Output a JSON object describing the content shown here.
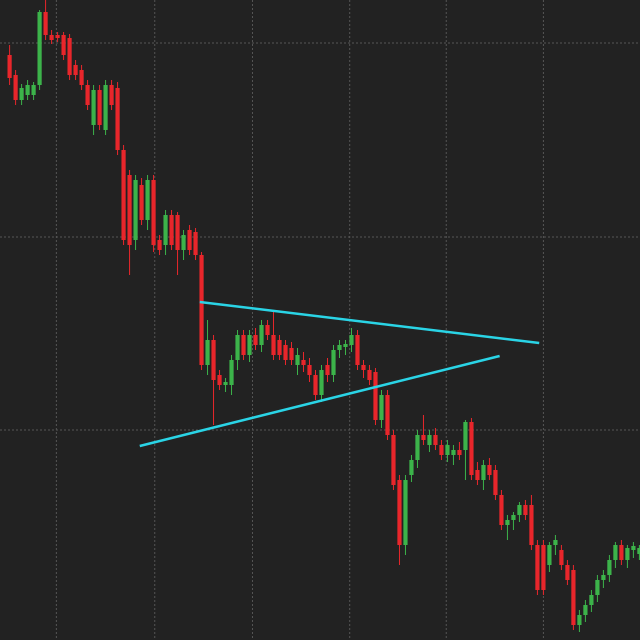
{
  "chart_data": {
    "type": "candlestick",
    "up_color": "#3cb34a",
    "down_color": "#e8262b",
    "trendline_color": "#2ad4e6",
    "grid": true,
    "xlim": [
      -1.6,
      105.1
    ],
    "ylim": [
      0,
      640
    ],
    "xticks": [
      7.8,
      24.2,
      40.5,
      56.7,
      72.8,
      89
    ],
    "yticks": [
      210,
      403,
      597
    ],
    "open": [
      585,
      565,
      540,
      545,
      545,
      555,
      628,
      605,
      605,
      605,
      602,
      575,
      570,
      555,
      515,
      550,
      510,
      555,
      552,
      490,
      465,
      400,
      455,
      420,
      460,
      400,
      395,
      425,
      425,
      390,
      410,
      408,
      385,
      275,
      300,
      265,
      255,
      255,
      280,
      305,
      285,
      305,
      295,
      315,
      305,
      300,
      295,
      292,
      275,
      280,
      275,
      265,
      245,
      275,
      265,
      290,
      293,
      295,
      305,
      275,
      270,
      268,
      220,
      245,
      205,
      160,
      95,
      165,
      180,
      205,
      195,
      205,
      195,
      185,
      185,
      190,
      190,
      218,
      170,
      160,
      175,
      170,
      145,
      115,
      120,
      125,
      135,
      135,
      95,
      95,
      75,
      95,
      90,
      75,
      70,
      15,
      25,
      35,
      45,
      60,
      65,
      80,
      95,
      80,
      90,
      86
    ],
    "high": [
      595,
      570,
      556,
      560,
      558,
      630,
      640,
      610,
      608,
      608,
      606,
      580,
      575,
      560,
      555,
      555,
      560,
      560,
      558,
      495,
      470,
      465,
      462,
      465,
      465,
      405,
      430,
      430,
      428,
      410,
      415,
      412,
      388,
      320,
      305,
      270,
      262,
      285,
      310,
      310,
      310,
      312,
      320,
      320,
      328,
      305,
      300,
      298,
      292,
      288,
      282,
      270,
      275,
      282,
      295,
      300,
      300,
      312,
      310,
      280,
      275,
      272,
      250,
      250,
      210,
      165,
      165,
      185,
      210,
      225,
      210,
      212,
      200,
      200,
      195,
      198,
      220,
      222,
      178,
      180,
      182,
      175,
      150,
      125,
      128,
      138,
      140,
      145,
      100,
      100,
      98,
      105,
      95,
      80,
      75,
      30,
      40,
      50,
      65,
      70,
      85,
      98,
      100,
      95,
      98,
      95
    ],
    "low": [
      555,
      535,
      535,
      540,
      540,
      550,
      600,
      596,
      598,
      580,
      560,
      560,
      550,
      530,
      505,
      510,
      505,
      530,
      485,
      395,
      365,
      390,
      415,
      410,
      388,
      385,
      385,
      390,
      365,
      380,
      385,
      380,
      270,
      265,
      215,
      250,
      248,
      245,
      270,
      280,
      278,
      290,
      288,
      300,
      280,
      280,
      275,
      275,
      265,
      268,
      258,
      240,
      238,
      258,
      258,
      282,
      285,
      288,
      270,
      262,
      255,
      215,
      212,
      200,
      150,
      75,
      85,
      158,
      172,
      195,
      188,
      190,
      180,
      178,
      175,
      180,
      160,
      160,
      155,
      150,
      160,
      140,
      110,
      100,
      110,
      118,
      120,
      90,
      45,
      45,
      68,
      85,
      70,
      55,
      10,
      8,
      18,
      28,
      38,
      52,
      58,
      72,
      75,
      72,
      82,
      80
    ],
    "close": [
      562,
      540,
      552,
      555,
      555,
      628,
      605,
      600,
      602,
      585,
      565,
      565,
      555,
      535,
      550,
      515,
      555,
      535,
      490,
      400,
      395,
      460,
      420,
      460,
      395,
      390,
      425,
      395,
      390,
      405,
      390,
      385,
      275,
      300,
      260,
      255,
      258,
      280,
      305,
      285,
      305,
      295,
      315,
      305,
      285,
      285,
      280,
      280,
      285,
      275,
      265,
      245,
      270,
      265,
      290,
      295,
      296,
      305,
      275,
      270,
      260,
      220,
      245,
      205,
      155,
      95,
      160,
      180,
      205,
      200,
      205,
      195,
      185,
      195,
      190,
      185,
      218,
      165,
      160,
      175,
      165,
      145,
      115,
      120,
      125,
      135,
      125,
      95,
      50,
      50,
      95,
      100,
      75,
      60,
      15,
      25,
      35,
      45,
      60,
      65,
      80,
      95,
      80,
      92,
      94,
      92
    ],
    "trendlines": [
      {
        "x": [
          31.7,
          88.3
        ],
        "y": [
          338,
          297
        ]
      },
      {
        "x": [
          21.7,
          81.7
        ],
        "y": [
          194,
          284
        ]
      }
    ]
  }
}
